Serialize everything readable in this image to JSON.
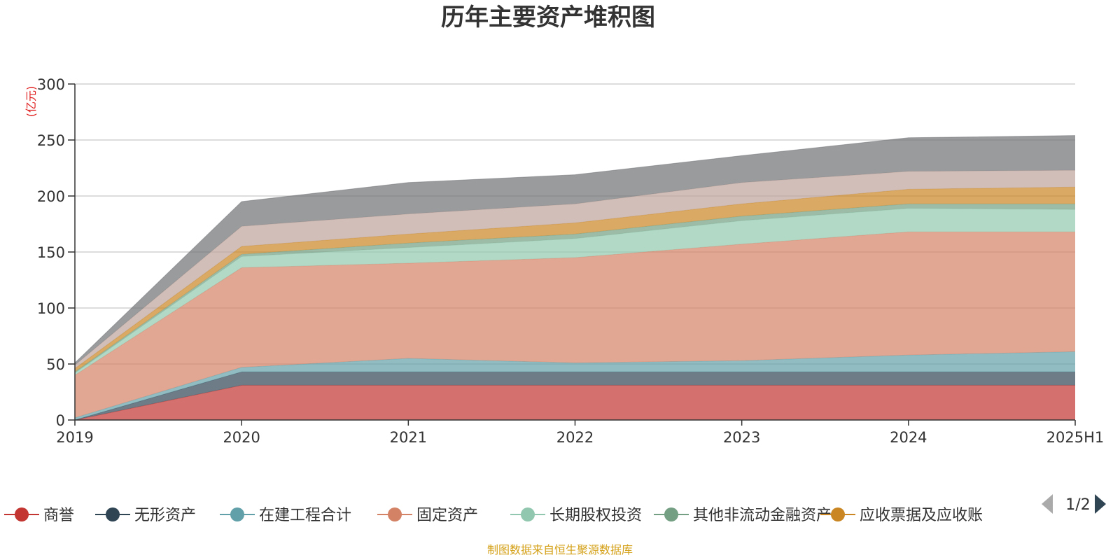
{
  "chart_data": {
    "type": "area",
    "stacked": true,
    "title": "历年主要资产堆积图",
    "unit": "(亿元)",
    "categories": [
      "2019",
      "2020",
      "2021",
      "2022",
      "2023",
      "2024",
      "2025H1"
    ],
    "ylim": [
      0,
      300
    ],
    "yticks": [
      0,
      50,
      100,
      150,
      200,
      250,
      300
    ],
    "grid": true,
    "legend_position": "bottom",
    "series": [
      {
        "name": "商誉",
        "color": "#c23531",
        "values": [
          0,
          31,
          31,
          31,
          31,
          31,
          31
        ]
      },
      {
        "name": "无形资产",
        "color": "#2f4554",
        "values": [
          0,
          12,
          12,
          12,
          12,
          12,
          12
        ]
      },
      {
        "name": "在建工程合计",
        "color": "#61a0a8",
        "values": [
          2,
          4,
          12,
          8,
          10,
          15,
          18
        ]
      },
      {
        "name": "固定资产",
        "color": "#d48265",
        "values": [
          38,
          89,
          85,
          94,
          104,
          110,
          107
        ]
      },
      {
        "name": "长期股权投资",
        "color": "#91c7ae",
        "values": [
          2,
          10,
          14,
          17,
          21,
          21,
          20
        ]
      },
      {
        "name": "其他非流动金融资产",
        "color": "#749f83",
        "values": [
          1,
          2,
          4,
          4,
          4,
          4,
          5
        ]
      },
      {
        "name": "应收票据及应收账",
        "color": "#ca8622",
        "values": [
          3,
          7,
          8,
          10,
          11,
          13,
          15
        ]
      },
      {
        "name": "",
        "color": "#bda29a",
        "values": [
          3,
          18,
          18,
          17,
          19,
          16,
          15
        ]
      },
      {
        "name": "",
        "color": "#6e7074",
        "values": [
          2,
          22,
          28,
          26,
          24,
          30,
          31
        ]
      }
    ]
  },
  "legend": {
    "page_indicator": "1/2"
  },
  "footer": {
    "source": "制图数据来自恒生聚源数据库"
  }
}
